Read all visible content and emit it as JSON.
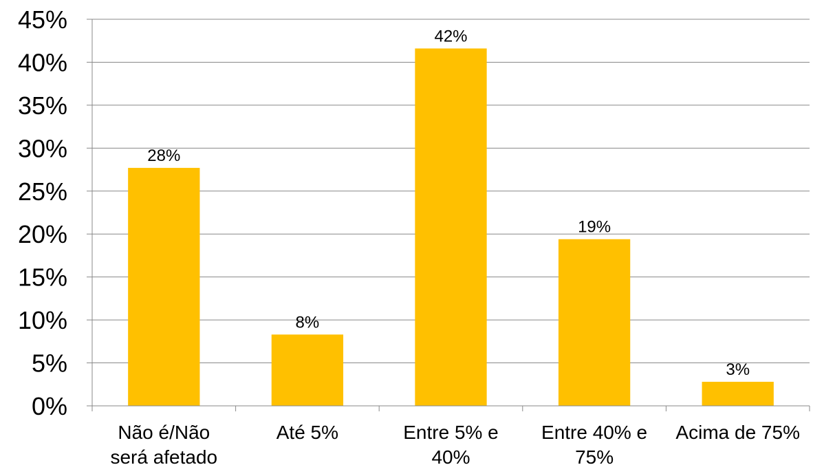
{
  "chart_data": {
    "type": "bar",
    "categories": [
      [
        "Não é/Não",
        "será afetado"
      ],
      [
        "Até 5%"
      ],
      [
        "Entre 5% e",
        "40%"
      ],
      [
        "Entre 40% e",
        "75%"
      ],
      [
        "Acima de 75%"
      ]
    ],
    "values": [
      27.7,
      8.3,
      41.6,
      19.4,
      2.8
    ],
    "data_labels": [
      "28%",
      "8%",
      "42%",
      "19%",
      "3%"
    ],
    "y_tick_labels": [
      "0%",
      "5%",
      "10%",
      "15%",
      "20%",
      "25%",
      "30%",
      "35%",
      "40%",
      "45%"
    ],
    "ylim": [
      0,
      45
    ],
    "y_step": 5,
    "grid": true,
    "legend": "none",
    "bar_color": "#FFC000",
    "grid_color": "#888888",
    "axis_color": "#888888"
  }
}
